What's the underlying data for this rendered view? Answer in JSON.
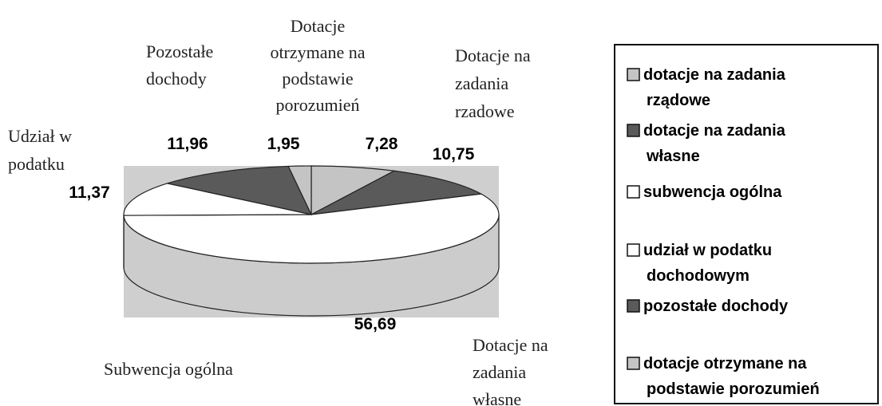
{
  "chart_data": {
    "type": "pie3d",
    "categories": [
      [
        "dotacje na zadania",
        "rządowe"
      ],
      [
        "dotacje na zadania",
        "własne"
      ],
      [
        "subwencja ogólna"
      ],
      [
        "udział w podatku",
        "dochodowym"
      ],
      [
        "pozostałe dochody"
      ],
      [
        "dotacje otrzymane na",
        "podstawie porozumień"
      ]
    ],
    "values": [
      7.28,
      10.75,
      56.69,
      11.37,
      11.96,
      1.95
    ],
    "value_labels": [
      "7,28",
      "10,75",
      "56,69",
      "11,37",
      "11,96",
      "1,95"
    ],
    "slice_labels": [
      [
        "Dotacje na",
        "zadania",
        "rzadowe"
      ],
      [
        "Dotacje na",
        "zadania",
        "własne"
      ],
      [
        "Subwencja ogólna"
      ],
      [
        "Udział w",
        "podatku"
      ],
      [
        "Pozostałe",
        "dochody"
      ],
      [
        "Dotacje",
        "otrzymane na",
        "podstawie",
        "porozumień"
      ]
    ],
    "colors": [
      "#c4c4c4",
      "#5a5a5a",
      "#ffffff",
      "#ffffff",
      "#5a5a5a",
      "#c4c4c4"
    ],
    "legend": "right"
  }
}
